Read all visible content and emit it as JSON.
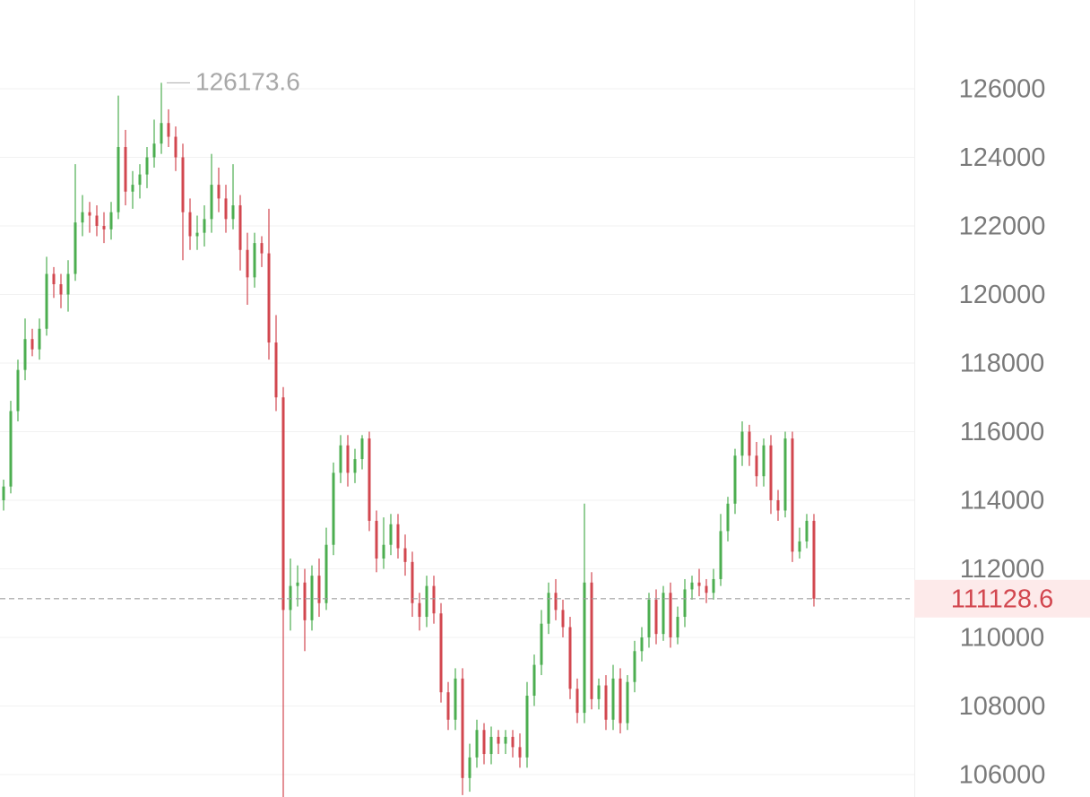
{
  "chart_data": {
    "type": "candlestick",
    "colors": {
      "up": "#4cae50",
      "down": "#d2474f"
    },
    "ylim": [
      105346,
      128588
    ],
    "yticks": [
      106000,
      108000,
      110000,
      112000,
      114000,
      116000,
      118000,
      120000,
      122000,
      124000,
      126000
    ],
    "grid": true,
    "max_marker": {
      "candle": 22
    },
    "ohlc": [
      [
        114000,
        114600,
        113700,
        114400
      ],
      [
        114400,
        116900,
        114200,
        116600
      ],
      [
        116600,
        118100,
        116300,
        117800
      ],
      [
        117800,
        119300,
        117500,
        118700
      ],
      [
        118700,
        119000,
        118200,
        118400
      ],
      [
        118400,
        119300,
        118100,
        119000
      ],
      [
        119000,
        121100,
        118800,
        120600
      ],
      [
        120600,
        120800,
        119900,
        120300
      ],
      [
        120300,
        120600,
        119600,
        120000
      ],
      [
        120000,
        121000,
        119500,
        120600
      ],
      [
        120600,
        123800,
        120400,
        122100
      ],
      [
        122100,
        122900,
        121700,
        122400
      ],
      [
        122400,
        122700,
        121800,
        122300
      ],
      [
        122300,
        122600,
        121700,
        122000
      ],
      [
        122000,
        122400,
        121500,
        121900
      ],
      [
        121900,
        122700,
        121600,
        122400
      ],
      [
        122400,
        125800,
        122200,
        124300
      ],
      [
        124300,
        124800,
        122600,
        123000
      ],
      [
        123000,
        123600,
        122500,
        123200
      ],
      [
        123200,
        123800,
        122800,
        123500
      ],
      [
        123500,
        124300,
        123100,
        124000
      ],
      [
        124000,
        125100,
        123700,
        124400
      ],
      [
        124400,
        126173.6,
        124100,
        125000
      ],
      [
        125000,
        125400,
        124300,
        124600
      ],
      [
        124600,
        124900,
        123600,
        124000
      ],
      [
        124000,
        124400,
        121000,
        122400
      ],
      [
        122400,
        122800,
        121300,
        121700
      ],
      [
        121700,
        122300,
        121300,
        121800
      ],
      [
        121800,
        122600,
        121400,
        122200
      ],
      [
        122200,
        124100,
        121800,
        123200
      ],
      [
        123200,
        123700,
        122400,
        122800
      ],
      [
        122800,
        123200,
        121800,
        122200
      ],
      [
        122200,
        123800,
        121900,
        122600
      ],
      [
        122600,
        122900,
        120700,
        121300
      ],
      [
        121300,
        121800,
        119700,
        120500
      ],
      [
        120500,
        121800,
        120200,
        121500
      ],
      [
        121500,
        121700,
        120800,
        121200
      ],
      [
        121200,
        122500,
        118100,
        118600
      ],
      [
        118600,
        119400,
        116600,
        117000
      ],
      [
        117000,
        117300,
        105000,
        110800
      ],
      [
        110800,
        112300,
        110200,
        111500
      ],
      [
        111500,
        112100,
        110900,
        111600
      ],
      [
        111600,
        112000,
        109600,
        110500
      ],
      [
        110500,
        112100,
        110200,
        111800
      ],
      [
        111800,
        112300,
        110600,
        111000
      ],
      [
        111000,
        113200,
        110800,
        112700
      ],
      [
        112700,
        115100,
        112400,
        114800
      ],
      [
        114800,
        115900,
        114500,
        115600
      ],
      [
        115600,
        115900,
        114400,
        114800
      ],
      [
        114800,
        115500,
        114500,
        115200
      ],
      [
        115200,
        115900,
        114900,
        115800
      ],
      [
        115800,
        116000,
        113100,
        113400
      ],
      [
        113400,
        113700,
        111900,
        112300
      ],
      [
        112300,
        113500,
        112000,
        112700
      ],
      [
        112700,
        113600,
        112400,
        113300
      ],
      [
        113300,
        113600,
        112300,
        112600
      ],
      [
        112600,
        113000,
        111800,
        112200
      ],
      [
        112200,
        112500,
        110600,
        111000
      ],
      [
        111000,
        111300,
        110200,
        110600
      ],
      [
        110600,
        111800,
        110300,
        111500
      ],
      [
        111500,
        111800,
        110400,
        110700
      ],
      [
        110700,
        111000,
        108100,
        108400
      ],
      [
        108400,
        108700,
        107300,
        107600
      ],
      [
        107600,
        109100,
        107300,
        108800
      ],
      [
        108800,
        109100,
        105400,
        105900
      ],
      [
        105900,
        106900,
        105500,
        106500
      ],
      [
        106500,
        107600,
        106200,
        107300
      ],
      [
        107300,
        107500,
        106300,
        106600
      ],
      [
        106600,
        107400,
        106300,
        107100
      ],
      [
        107100,
        107300,
        106600,
        106900
      ],
      [
        106900,
        107300,
        106600,
        107100
      ],
      [
        107100,
        107300,
        106500,
        106800
      ],
      [
        106800,
        107200,
        106200,
        106500
      ],
      [
        106500,
        108700,
        106200,
        108300
      ],
      [
        108300,
        109500,
        108000,
        109200
      ],
      [
        109200,
        110800,
        108900,
        110400
      ],
      [
        110400,
        111600,
        110100,
        111300
      ],
      [
        111300,
        111700,
        110500,
        110800
      ],
      [
        110800,
        111100,
        110000,
        110300
      ],
      [
        110300,
        110600,
        108200,
        108500
      ],
      [
        108500,
        108800,
        107500,
        107800
      ],
      [
        107800,
        113900,
        107500,
        111600
      ],
      [
        111600,
        111900,
        107900,
        108200
      ],
      [
        108200,
        108800,
        107900,
        108600
      ],
      [
        108600,
        108900,
        107300,
        107600
      ],
      [
        107600,
        109200,
        107300,
        108800
      ],
      [
        108800,
        109100,
        107200,
        107500
      ],
      [
        107500,
        108900,
        107300,
        108700
      ],
      [
        108700,
        109900,
        108400,
        109600
      ],
      [
        109600,
        110300,
        109300,
        110000
      ],
      [
        110000,
        111300,
        109700,
        111100
      ],
      [
        111100,
        111400,
        109800,
        110100
      ],
      [
        110100,
        111500,
        109900,
        111300
      ],
      [
        111300,
        111600,
        109700,
        110000
      ],
      [
        110000,
        110900,
        109800,
        110600
      ],
      [
        110600,
        111700,
        110300,
        111400
      ],
      [
        111400,
        111800,
        111100,
        111600
      ],
      [
        111600,
        112000,
        111200,
        111500
      ],
      [
        111500,
        111700,
        111000,
        111300
      ],
      [
        111300,
        112000,
        111100,
        111700
      ],
      [
        111700,
        113600,
        111500,
        113100
      ],
      [
        113100,
        114100,
        112800,
        113900
      ],
      [
        113900,
        115500,
        113600,
        115300
      ],
      [
        115300,
        116300,
        115000,
        116000
      ],
      [
        116000,
        116200,
        115000,
        115300
      ],
      [
        115300,
        115700,
        114400,
        114700
      ],
      [
        114700,
        115800,
        114400,
        115600
      ],
      [
        115600,
        115900,
        113600,
        114000
      ],
      [
        114000,
        114300,
        113400,
        113700
      ],
      [
        113700,
        116000,
        113500,
        115800
      ],
      [
        115800,
        116000,
        112200,
        112500
      ],
      [
        112500,
        113200,
        112300,
        112800
      ],
      [
        112800,
        113600,
        112600,
        113400
      ],
      [
        113400,
        113600,
        110900,
        111128.6
      ]
    ]
  }
}
